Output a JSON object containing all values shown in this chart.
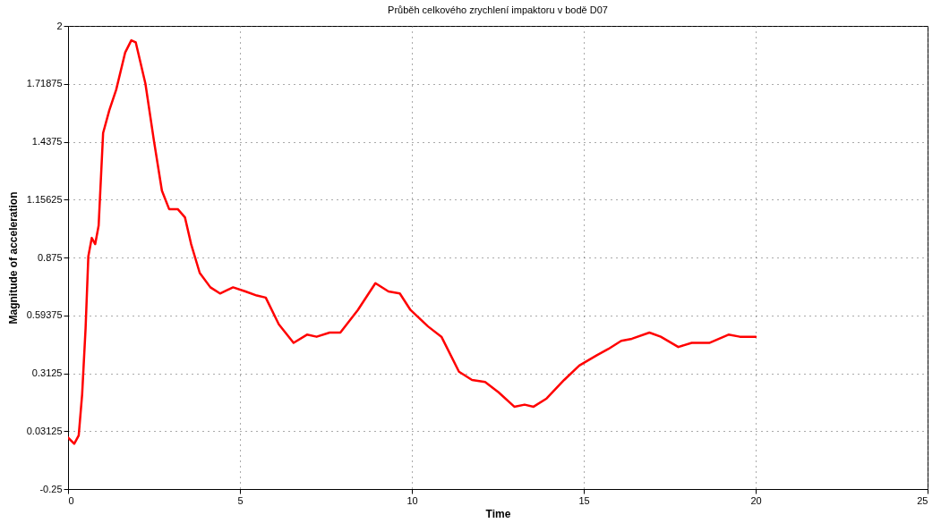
{
  "chart_data": {
    "type": "line",
    "title": "Průběh celkového zrychlení impaktoru v bodě D07",
    "xlabel": "Time",
    "ylabel": "Magnitude of acceleration",
    "x": [
      0,
      0.18,
      0.31,
      0.41,
      0.51,
      0.59,
      0.69,
      0.79,
      0.89,
      1.02,
      1.2,
      1.4,
      1.66,
      1.84,
      1.97,
      2.25,
      2.5,
      2.73,
      2.94,
      3.19,
      3.4,
      3.58,
      3.83,
      4.14,
      4.42,
      4.8,
      5.16,
      5.49,
      5.75,
      6.13,
      6.56,
      6.95,
      7.23,
      7.61,
      7.92,
      8.43,
      8.94,
      9.32,
      9.65,
      9.96,
      10.47,
      10.86,
      11.37,
      11.75,
      12.13,
      12.52,
      12.98,
      13.28,
      13.54,
      13.92,
      14.43,
      14.87,
      15.38,
      15.71,
      16.09,
      16.4,
      16.91,
      17.24,
      17.75,
      18.14,
      18.65,
      19.21,
      19.54,
      20
    ],
    "series": [
      {
        "color": "#ff0000",
        "values": [
          0.0,
          -0.03,
          0.01,
          0.21,
          0.53,
          0.88,
          0.97,
          0.94,
          1.03,
          1.48,
          1.59,
          1.69,
          1.87,
          1.93,
          1.92,
          1.72,
          1.44,
          1.2,
          1.11,
          1.11,
          1.07,
          0.94,
          0.8,
          0.73,
          0.7,
          0.73,
          0.71,
          0.69,
          0.68,
          0.55,
          0.46,
          0.5,
          0.49,
          0.51,
          0.51,
          0.62,
          0.75,
          0.71,
          0.7,
          0.62,
          0.54,
          0.49,
          0.32,
          0.28,
          0.27,
          0.22,
          0.15,
          0.16,
          0.15,
          0.19,
          0.28,
          0.35,
          0.4,
          0.43,
          0.47,
          0.48,
          0.51,
          0.49,
          0.44,
          0.46,
          0.46,
          0.5,
          0.49,
          0.49
        ]
      }
    ],
    "xlim": [
      0,
      25
    ],
    "xticks": [
      0,
      5,
      10,
      15,
      20,
      25
    ],
    "ylim": [
      -0.25,
      2
    ],
    "yticks": [
      -0.25,
      0.03125,
      0.3125,
      0.59375,
      0.875,
      1.15625,
      1.4375,
      1.71875,
      2
    ],
    "grid": true,
    "marker": "none",
    "line_style": "solid"
  }
}
